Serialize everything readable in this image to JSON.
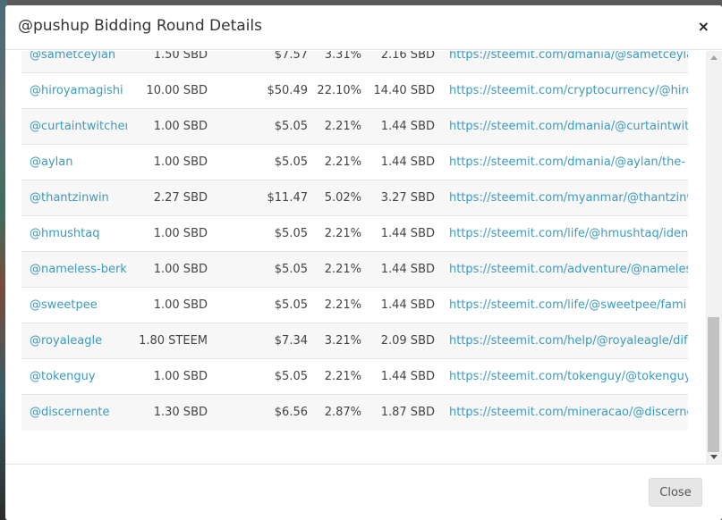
{
  "modal": {
    "title": "@pushup Bidding Round Details",
    "close_icon": "×",
    "close_button_label": "Close"
  },
  "rows": [
    {
      "user": "@sametceylan",
      "amount": "1.50 SBD",
      "value": "$7.57",
      "share": "3.31%",
      "sbd": "2.16 SBD",
      "url": "https://steemit.com/dmania/@sametceylan"
    },
    {
      "user": "@hiroyamagishi",
      "amount": "10.00 SBD",
      "value": "$50.49",
      "share": "22.10%",
      "sbd": "14.40 SBD",
      "url": "https://steemit.com/cryptocurrency/@hiro"
    },
    {
      "user": "@curtaintwitcher",
      "amount": "1.00 SBD",
      "value": "$5.05",
      "share": "2.21%",
      "sbd": "1.44 SBD",
      "url": "https://steemit.com/dmania/@curtaintwit"
    },
    {
      "user": "@aylan",
      "amount": "1.00 SBD",
      "value": "$5.05",
      "share": "2.21%",
      "sbd": "1.44 SBD",
      "url": "https://steemit.com/dmania/@aylan/the-"
    },
    {
      "user": "@thantzinwin",
      "amount": "2.27 SBD",
      "value": "$11.47",
      "share": "5.02%",
      "sbd": "3.27 SBD",
      "url": "https://steemit.com/myanmar/@thantzinw"
    },
    {
      "user": "@hmushtaq",
      "amount": "1.00 SBD",
      "value": "$5.05",
      "share": "2.21%",
      "sbd": "1.44 SBD",
      "url": "https://steemit.com/life/@hmushtaq/iden"
    },
    {
      "user": "@nameless-berk",
      "amount": "1.00 SBD",
      "value": "$5.05",
      "share": "2.21%",
      "sbd": "1.44 SBD",
      "url": "https://steemit.com/adventure/@nameles"
    },
    {
      "user": "@sweetpee",
      "amount": "1.00 SBD",
      "value": "$5.05",
      "share": "2.21%",
      "sbd": "1.44 SBD",
      "url": "https://steemit.com/life/@sweetpee/fami"
    },
    {
      "user": "@royaleagle",
      "amount": "1.80 STEEM",
      "value": "$7.34",
      "share": "3.21%",
      "sbd": "2.09 SBD",
      "url": "https://steemit.com/help/@royaleagle/dif"
    },
    {
      "user": "@tokenguy",
      "amount": "1.00 SBD",
      "value": "$5.05",
      "share": "2.21%",
      "sbd": "1.44 SBD",
      "url": "https://steemit.com/tokenguy/@tokenguy"
    },
    {
      "user": "@discernente",
      "amount": "1.30 SBD",
      "value": "$6.56",
      "share": "2.87%",
      "sbd": "1.87 SBD",
      "url": "https://steemit.com/mineracao/@discerne"
    }
  ],
  "colors": {
    "link": "#3a9bbd",
    "stripe": "#f7f7f7"
  }
}
